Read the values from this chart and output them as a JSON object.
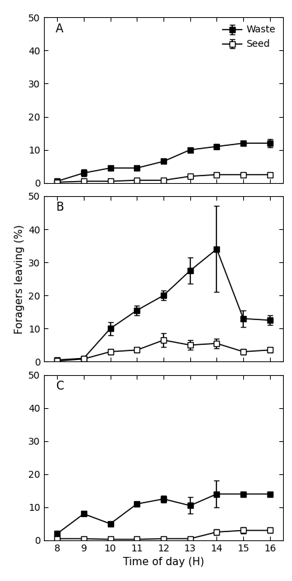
{
  "x": [
    8,
    9,
    10,
    11,
    12,
    13,
    14,
    15,
    16
  ],
  "panels": [
    {
      "label": "A",
      "waste_y": [
        0.5,
        3.0,
        4.5,
        4.5,
        6.5,
        10.0,
        11.0,
        12.0,
        12.0
      ],
      "waste_err": [
        0.3,
        1.0,
        0.5,
        0.4,
        0.5,
        0.5,
        0.5,
        0.5,
        1.2
      ],
      "seed_y": [
        0.2,
        0.5,
        0.5,
        0.8,
        0.8,
        2.0,
        2.5,
        2.5,
        2.5
      ],
      "seed_err": [
        0.1,
        0.3,
        0.2,
        0.2,
        0.2,
        0.4,
        0.5,
        0.4,
        0.4
      ]
    },
    {
      "label": "B",
      "waste_y": [
        0.5,
        1.0,
        10.0,
        15.5,
        20.0,
        27.5,
        34.0,
        13.0,
        12.5
      ],
      "waste_err": [
        0.2,
        0.5,
        2.0,
        1.5,
        1.5,
        4.0,
        13.0,
        2.5,
        1.5
      ],
      "seed_y": [
        0.2,
        0.8,
        3.0,
        3.5,
        6.5,
        5.0,
        5.5,
        3.0,
        3.5
      ],
      "seed_err": [
        0.1,
        0.3,
        0.8,
        0.8,
        2.0,
        1.5,
        1.5,
        0.8,
        0.8
      ]
    },
    {
      "label": "C",
      "waste_y": [
        2.0,
        8.0,
        5.0,
        11.0,
        12.5,
        10.5,
        14.0,
        14.0,
        14.0
      ],
      "waste_err": [
        0.3,
        0.5,
        0.5,
        0.5,
        1.0,
        2.5,
        4.0,
        0.5,
        0.5
      ],
      "seed_y": [
        0.5,
        0.5,
        0.3,
        0.3,
        0.5,
        0.5,
        2.5,
        3.0,
        3.0
      ],
      "seed_err": [
        0.2,
        0.2,
        0.1,
        0.1,
        0.2,
        0.2,
        0.8,
        1.0,
        0.8
      ]
    }
  ],
  "ylim": [
    0,
    50
  ],
  "yticks": [
    0,
    10,
    20,
    30,
    40,
    50
  ],
  "ylabel": "Foragers leaving (%)",
  "xlabel": "Time of day (H)",
  "waste_color": "#000000",
  "seed_color": "#000000",
  "bg_color": "#ffffff",
  "legend_labels": [
    "Waste",
    "Seed"
  ],
  "marker_waste": "s",
  "marker_seed": "s",
  "linewidth": 1.2,
  "markersize": 6,
  "capsize": 3
}
